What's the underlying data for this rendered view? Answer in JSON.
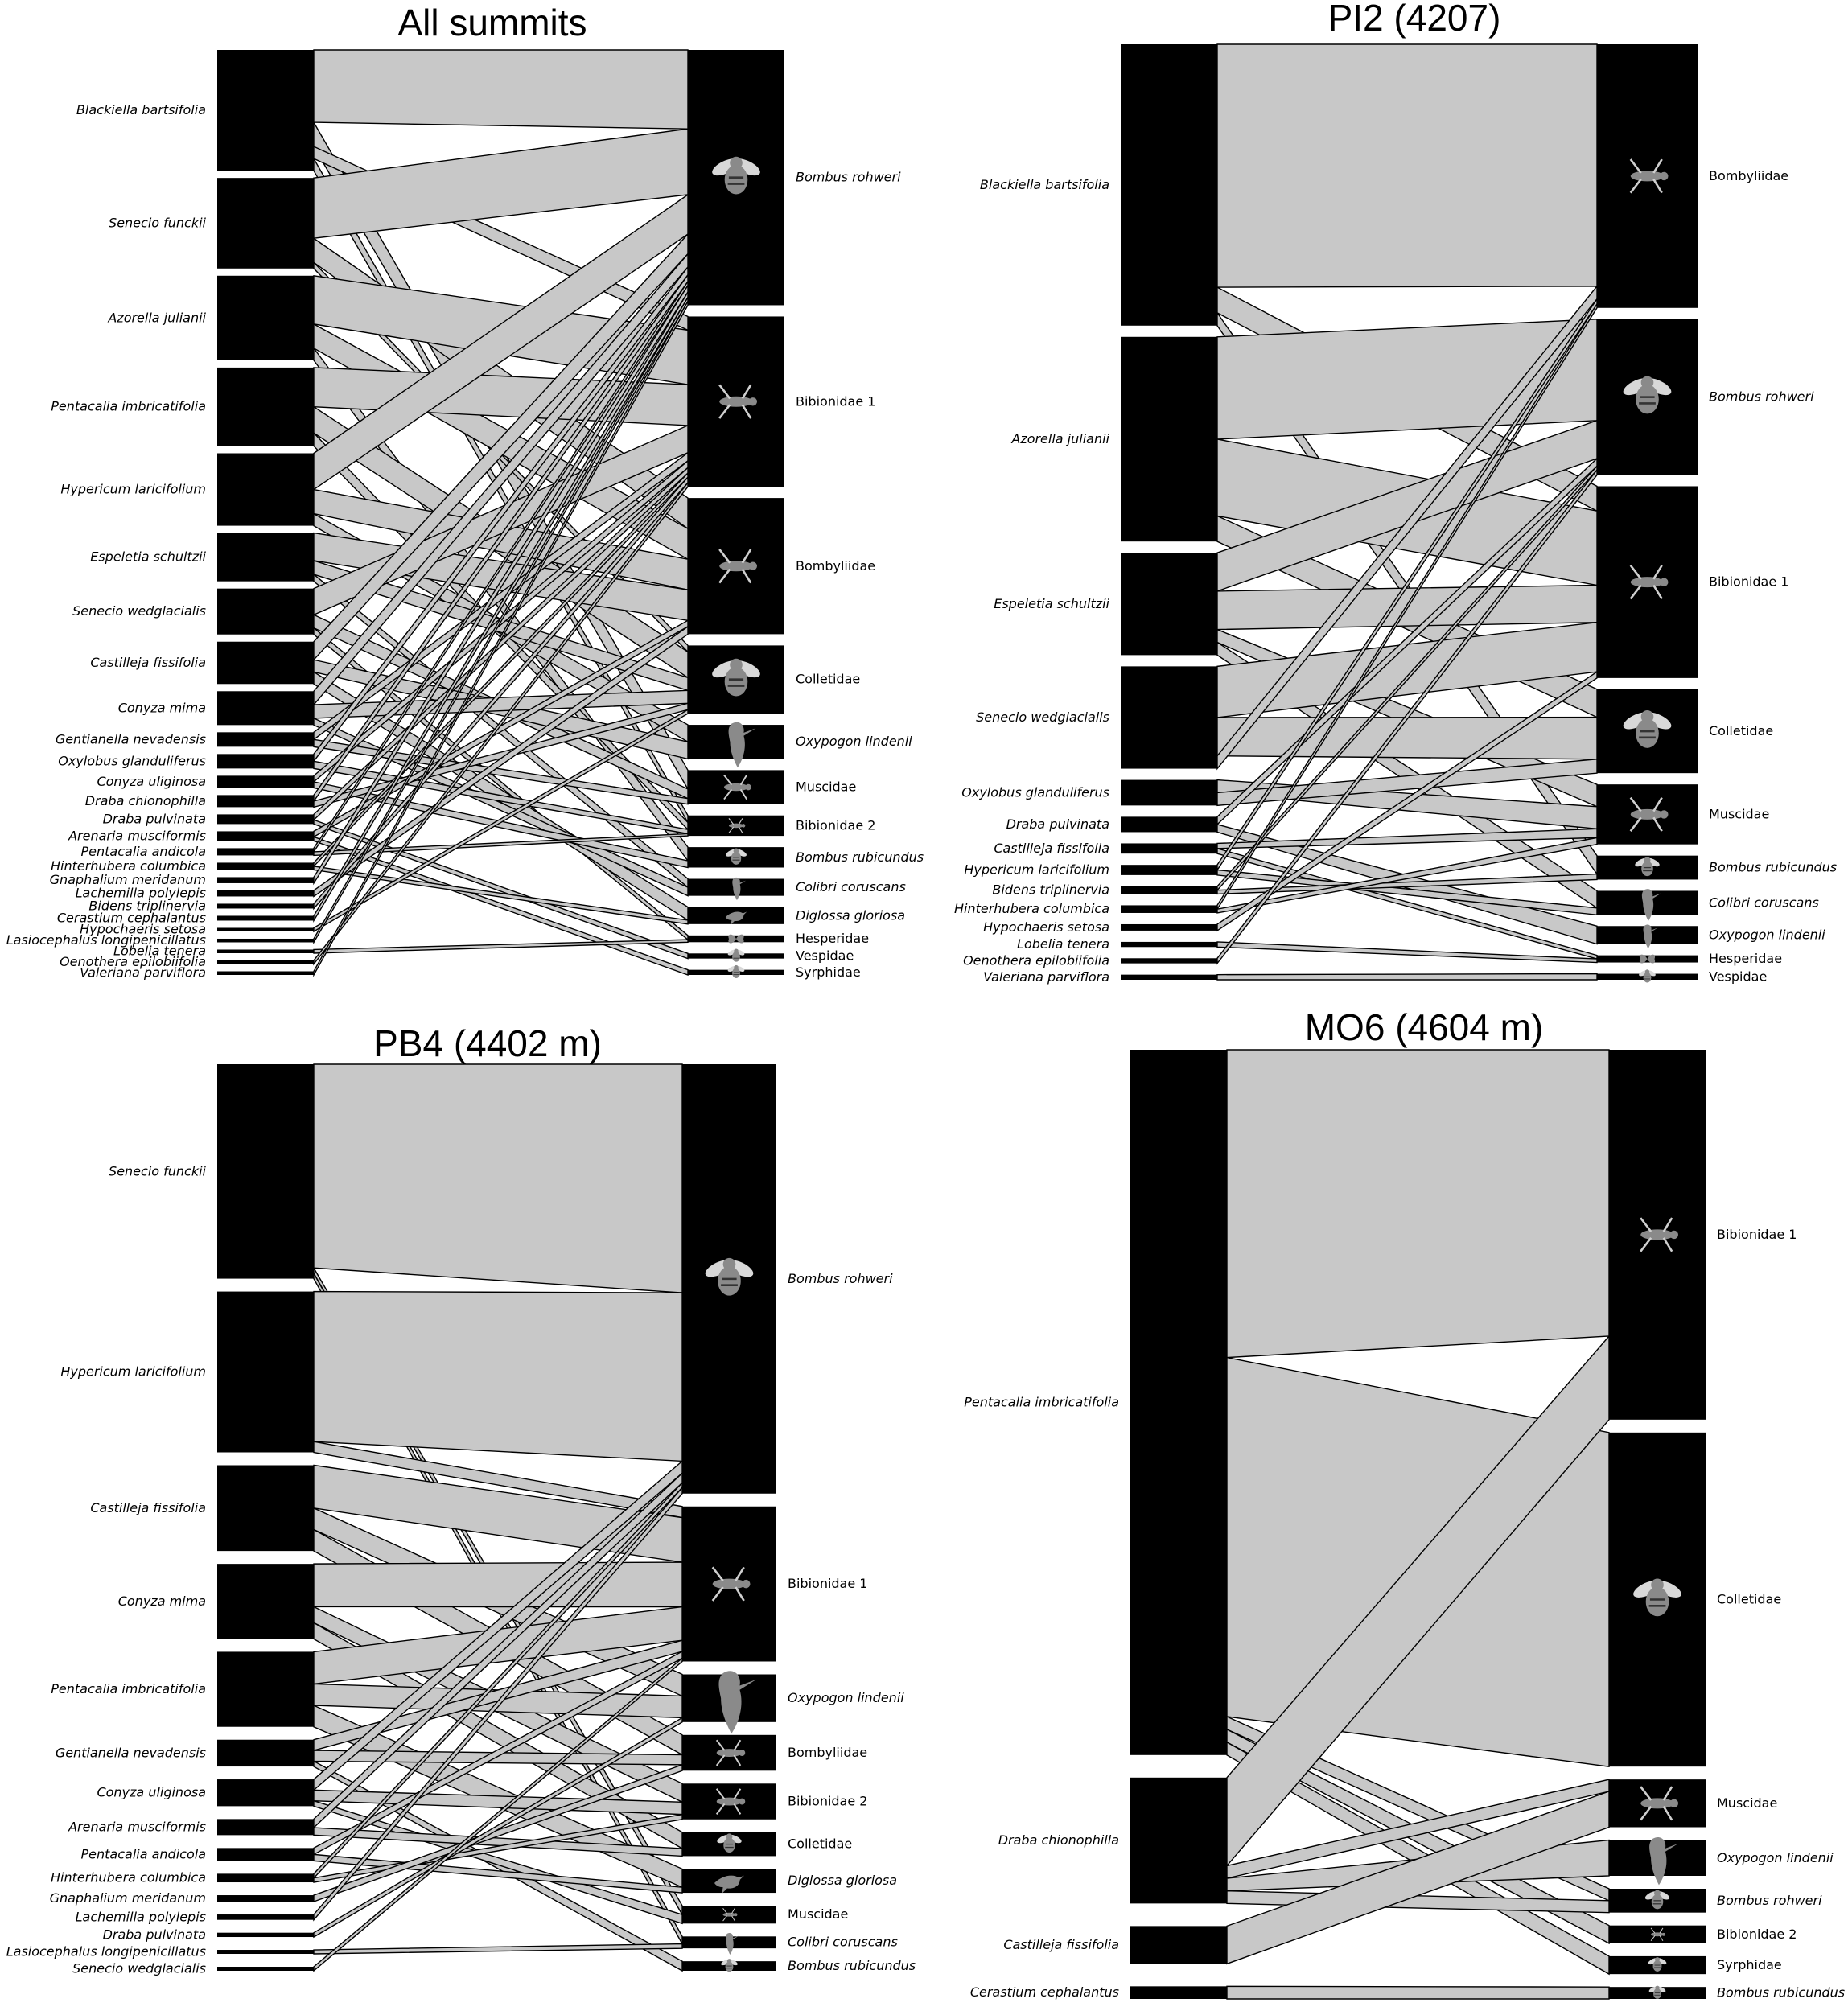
{
  "colors": {
    "block": "#000000",
    "link": "#c8c8c8",
    "link_edge": "#000000",
    "icon": "#8a8a8a",
    "background": "#ffffff"
  },
  "chart_data": [
    {
      "type": "bipartite",
      "title": "All summits",
      "plants": [
        {
          "name": "Blackiella bartsifolia",
          "weight": 10
        },
        {
          "name": "Senecio funckii",
          "weight": 7.5
        },
        {
          "name": "Azorella julianii",
          "weight": 7
        },
        {
          "name": "Pentacalia imbricatifolia",
          "weight": 6.5
        },
        {
          "name": "Hypericum laricifolium",
          "weight": 6
        },
        {
          "name": "Espeletia schultzii",
          "weight": 4
        },
        {
          "name": "Senecio wedglacialis",
          "weight": 3.8
        },
        {
          "name": "Castilleja fissifolia",
          "weight": 3.5
        },
        {
          "name": "Conyza mima",
          "weight": 2.8
        },
        {
          "name": "Gentianella nevadensis",
          "weight": 1.2
        },
        {
          "name": "Oxylobus glanduliferus",
          "weight": 1.2
        },
        {
          "name": "Conyza uliginosa",
          "weight": 1
        },
        {
          "name": "Draba chionophilla",
          "weight": 1
        },
        {
          "name": "Draba pulvinata",
          "weight": 0.8
        },
        {
          "name": "Arenaria musciformis",
          "weight": 0.8
        },
        {
          "name": "Pentacalia andicola",
          "weight": 0.6
        },
        {
          "name": "Hinterhubera columbica",
          "weight": 0.6
        },
        {
          "name": "Gnaphalium meridanum",
          "weight": 0.5
        },
        {
          "name": "Lachemilla polylepis",
          "weight": 0.5
        },
        {
          "name": "Bidens triplinervia",
          "weight": 0.4
        },
        {
          "name": "Cerastium cephalantus",
          "weight": 0.4
        },
        {
          "name": "Hypochaeris setosa",
          "weight": 0.3
        },
        {
          "name": "Lasiocephalus longipenicillatus",
          "weight": 0.3
        },
        {
          "name": "Lobelia tenera",
          "weight": 0.3
        },
        {
          "name": "Oenothera epilobiifolia",
          "weight": 0.3
        },
        {
          "name": "Valeriana parviflora",
          "weight": 0.3
        }
      ],
      "animals": [
        {
          "name": "Bombus rohweri",
          "italic": true,
          "icon": "bumblebee-icon",
          "weight": 15
        },
        {
          "name": "Bibionidae 1",
          "italic": false,
          "icon": "fly-icon",
          "weight": 10
        },
        {
          "name": "Bombyliidae",
          "italic": false,
          "icon": "bee-fly-icon",
          "weight": 8
        },
        {
          "name": "Colletidae",
          "italic": false,
          "icon": "bee-icon",
          "weight": 4
        },
        {
          "name": "Oxypogon lindenii",
          "italic": true,
          "icon": "hummingbird-icon",
          "weight": 2
        },
        {
          "name": "Muscidae",
          "italic": false,
          "icon": "housefly-icon",
          "weight": 2
        },
        {
          "name": "Bibionidae 2",
          "italic": false,
          "icon": "fly-icon",
          "weight": 1.2
        },
        {
          "name": "Bombus rubicundus",
          "italic": true,
          "icon": "bumblebee-icon",
          "weight": 1.2
        },
        {
          "name": "Colibri coruscans",
          "italic": true,
          "icon": "hummingbird-icon",
          "weight": 1
        },
        {
          "name": "Diglossa gloriosa",
          "italic": true,
          "icon": "songbird-icon",
          "weight": 1
        },
        {
          "name": "Hesperidae",
          "italic": false,
          "icon": "butterfly-icon",
          "weight": 0.4
        },
        {
          "name": "Vespidae",
          "italic": false,
          "icon": "wasp-icon",
          "weight": 0.3
        },
        {
          "name": "Syrphidae",
          "italic": false,
          "icon": "hoverfly-icon",
          "weight": 0.3
        }
      ],
      "links": [
        [
          0,
          0,
          6
        ],
        [
          0,
          5,
          2
        ],
        [
          0,
          1,
          1
        ],
        [
          0,
          6,
          1
        ],
        [
          1,
          0,
          5
        ],
        [
          1,
          2,
          2
        ],
        [
          1,
          3,
          0.5
        ],
        [
          2,
          1,
          4
        ],
        [
          2,
          2,
          2
        ],
        [
          2,
          7,
          1
        ],
        [
          3,
          1,
          3
        ],
        [
          3,
          3,
          2
        ],
        [
          3,
          6,
          1
        ],
        [
          4,
          0,
          3
        ],
        [
          4,
          2,
          2
        ],
        [
          4,
          4,
          1
        ],
        [
          5,
          2,
          2
        ],
        [
          5,
          3,
          1
        ],
        [
          5,
          8,
          0.5
        ],
        [
          6,
          1,
          2
        ],
        [
          6,
          5,
          1
        ],
        [
          6,
          10,
          0.5
        ],
        [
          7,
          0,
          1.5
        ],
        [
          7,
          4,
          1
        ],
        [
          7,
          9,
          1
        ],
        [
          8,
          0,
          1
        ],
        [
          8,
          3,
          1
        ],
        [
          8,
          8,
          0.5
        ],
        [
          9,
          1,
          0.6
        ],
        [
          9,
          5,
          0.6
        ],
        [
          10,
          0,
          0.6
        ],
        [
          10,
          6,
          0.6
        ],
        [
          11,
          1,
          0.5
        ],
        [
          11,
          7,
          0.5
        ],
        [
          12,
          0,
          0.5
        ],
        [
          12,
          3,
          0.5
        ],
        [
          13,
          1,
          0.4
        ],
        [
          13,
          11,
          0.3
        ],
        [
          14,
          2,
          0.4
        ],
        [
          14,
          12,
          0.3
        ],
        [
          15,
          0,
          0.3
        ],
        [
          15,
          6,
          0.3
        ],
        [
          16,
          1,
          0.3
        ],
        [
          16,
          9,
          0.3
        ],
        [
          17,
          0,
          0.5
        ],
        [
          18,
          2,
          0.5
        ],
        [
          19,
          1,
          0.4
        ],
        [
          20,
          0,
          0.4
        ],
        [
          21,
          3,
          0.3
        ],
        [
          22,
          0,
          0.3
        ],
        [
          23,
          10,
          0.3
        ],
        [
          24,
          1,
          0.3
        ],
        [
          25,
          0,
          0.3
        ]
      ]
    },
    {
      "type": "bipartite",
      "title": "PI2 (4207)",
      "plants": [
        {
          "name": "Blackiella bartsifolia",
          "weight": 22
        },
        {
          "name": "Azorella julianii",
          "weight": 16
        },
        {
          "name": "Espeletia schultzii",
          "weight": 8
        },
        {
          "name": "Senecio wedglacialis",
          "weight": 8
        },
        {
          "name": "Oxylobus glanduliferus",
          "weight": 2
        },
        {
          "name": "Draba pulvinata",
          "weight": 1.2
        },
        {
          "name": "Castilleja fissifolia",
          "weight": 0.8
        },
        {
          "name": "Hypericum laricifolium",
          "weight": 0.8
        },
        {
          "name": "Bidens triplinervia",
          "weight": 0.6
        },
        {
          "name": "Hinterhubera columbica",
          "weight": 0.6
        },
        {
          "name": "Hypochaeris setosa",
          "weight": 0.5
        },
        {
          "name": "Lobelia tenera",
          "weight": 0.4
        },
        {
          "name": "Oenothera epilobiifolia",
          "weight": 0.4
        },
        {
          "name": "Valeriana parviflora",
          "weight": 0.4
        }
      ],
      "animals": [
        {
          "name": "Bombyliidae",
          "italic": false,
          "icon": "bee-fly-icon",
          "weight": 22
        },
        {
          "name": "Bombus rohweri",
          "italic": true,
          "icon": "bumblebee-icon",
          "weight": 13
        },
        {
          "name": "Bibionidae 1",
          "italic": false,
          "icon": "fly-icon",
          "weight": 16
        },
        {
          "name": "Colletidae",
          "italic": false,
          "icon": "bee-icon",
          "weight": 7
        },
        {
          "name": "Muscidae",
          "italic": false,
          "icon": "housefly-icon",
          "weight": 5
        },
        {
          "name": "Bombus rubicundus",
          "italic": true,
          "icon": "bumblebee-icon",
          "weight": 2
        },
        {
          "name": "Colibri coruscans",
          "italic": true,
          "icon": "hummingbird-icon",
          "weight": 2
        },
        {
          "name": "Oxypogon lindenii",
          "italic": true,
          "icon": "hummingbird-icon",
          "weight": 1.5
        },
        {
          "name": "Hesperidae",
          "italic": false,
          "icon": "butterfly-icon",
          "weight": 0.6
        },
        {
          "name": "Vespidae",
          "italic": false,
          "icon": "wasp-icon",
          "weight": 0.5
        }
      ],
      "links": [
        [
          0,
          0,
          19
        ],
        [
          0,
          2,
          2
        ],
        [
          0,
          5,
          1
        ],
        [
          1,
          1,
          8
        ],
        [
          1,
          2,
          6
        ],
        [
          1,
          3,
          2
        ],
        [
          2,
          1,
          3
        ],
        [
          2,
          2,
          3
        ],
        [
          2,
          4,
          1
        ],
        [
          2,
          6,
          1
        ],
        [
          3,
          2,
          4
        ],
        [
          3,
          3,
          3
        ],
        [
          3,
          0,
          1
        ],
        [
          4,
          4,
          1
        ],
        [
          4,
          3,
          1
        ],
        [
          5,
          1,
          0.6
        ],
        [
          5,
          7,
          0.6
        ],
        [
          6,
          4,
          0.4
        ],
        [
          6,
          8,
          0.4
        ],
        [
          7,
          0,
          0.4
        ],
        [
          7,
          6,
          0.4
        ],
        [
          8,
          1,
          0.3
        ],
        [
          8,
          5,
          0.3
        ],
        [
          9,
          0,
          0.3
        ],
        [
          9,
          4,
          0.3
        ],
        [
          10,
          2,
          0.5
        ],
        [
          11,
          8,
          0.4
        ],
        [
          12,
          1,
          0.4
        ],
        [
          13,
          9,
          0.4
        ]
      ]
    },
    {
      "type": "bipartite",
      "title": "PB4 (4402 m)",
      "plants": [
        {
          "name": "Senecio funckii",
          "weight": 20
        },
        {
          "name": "Hypericum laricifolium",
          "weight": 15
        },
        {
          "name": "Castilleja fissifolia",
          "weight": 8
        },
        {
          "name": "Conyza mima",
          "weight": 7
        },
        {
          "name": "Pentacalia imbricatifolia",
          "weight": 7
        },
        {
          "name": "Gentianella nevadensis",
          "weight": 2.5
        },
        {
          "name": "Conyza uliginosa",
          "weight": 2.5
        },
        {
          "name": "Arenaria musciformis",
          "weight": 1.5
        },
        {
          "name": "Pentacalia andicola",
          "weight": 1.2
        },
        {
          "name": "Hinterhubera columbica",
          "weight": 0.8
        },
        {
          "name": "Gnaphalium meridanum",
          "weight": 0.6
        },
        {
          "name": "Lachemilla polylepis",
          "weight": 0.5
        },
        {
          "name": "Draba pulvinata",
          "weight": 0.4
        },
        {
          "name": "Lasiocephalus longipenicillatus",
          "weight": 0.3
        },
        {
          "name": "Senecio wedglacialis",
          "weight": 0.3
        }
      ],
      "animals": [
        {
          "name": "Bombus rohweri",
          "italic": true,
          "icon": "bumblebee-icon",
          "weight": 36
        },
        {
          "name": "Bibionidae 1",
          "italic": false,
          "icon": "fly-icon",
          "weight": 13
        },
        {
          "name": "Oxypogon lindenii",
          "italic": true,
          "icon": "hummingbird-icon",
          "weight": 4
        },
        {
          "name": "Bombyliidae",
          "italic": false,
          "icon": "bee-fly-icon",
          "weight": 3
        },
        {
          "name": "Bibionidae 2",
          "italic": false,
          "icon": "fly-icon",
          "weight": 3
        },
        {
          "name": "Colletidae",
          "italic": false,
          "icon": "bee-icon",
          "weight": 2
        },
        {
          "name": "Diglossa gloriosa",
          "italic": true,
          "icon": "songbird-icon",
          "weight": 2
        },
        {
          "name": "Muscidae",
          "italic": false,
          "icon": "housefly-icon",
          "weight": 1.5
        },
        {
          "name": "Colibri coruscans",
          "italic": true,
          "icon": "hummingbird-icon",
          "weight": 1
        },
        {
          "name": "Bombus rubicundus",
          "italic": true,
          "icon": "bumblebee-icon",
          "weight": 0.8
        }
      ],
      "links": [
        [
          0,
          0,
          19
        ],
        [
          0,
          7,
          0.5
        ],
        [
          0,
          8,
          0.5
        ],
        [
          1,
          0,
          14
        ],
        [
          1,
          1,
          1
        ],
        [
          2,
          1,
          4
        ],
        [
          2,
          2,
          2
        ],
        [
          2,
          3,
          2
        ],
        [
          3,
          1,
          4
        ],
        [
          3,
          4,
          1.5
        ],
        [
          3,
          5,
          1.5
        ],
        [
          4,
          1,
          3
        ],
        [
          4,
          2,
          2
        ],
        [
          4,
          6,
          2
        ],
        [
          5,
          1,
          1
        ],
        [
          5,
          3,
          1
        ],
        [
          5,
          9,
          0.5
        ],
        [
          6,
          0,
          1
        ],
        [
          6,
          4,
          1
        ],
        [
          6,
          7,
          0.5
        ],
        [
          7,
          0,
          0.8
        ],
        [
          7,
          5,
          0.7
        ],
        [
          8,
          1,
          0.6
        ],
        [
          8,
          6,
          0.6
        ],
        [
          9,
          0,
          0.4
        ],
        [
          9,
          4,
          0.4
        ],
        [
          10,
          3,
          0.6
        ],
        [
          11,
          0,
          0.5
        ],
        [
          12,
          2,
          0.4
        ],
        [
          13,
          8,
          0.3
        ],
        [
          14,
          1,
          0.3
        ]
      ]
    },
    {
      "type": "bipartite",
      "title": "MO6 (4604 m)",
      "plants": [
        {
          "name": "Pentacalia imbricatifolia",
          "weight": 56
        },
        {
          "name": "Draba chionophilla",
          "weight": 10
        },
        {
          "name": "Castilleja fissifolia",
          "weight": 3
        },
        {
          "name": "Cerastium cephalantus",
          "weight": 1
        }
      ],
      "animals": [
        {
          "name": "Bibionidae 1",
          "italic": false,
          "icon": "fly-icon",
          "weight": 31
        },
        {
          "name": "Colletidae",
          "italic": false,
          "icon": "bee-icon",
          "weight": 28
        },
        {
          "name": "Muscidae",
          "italic": false,
          "icon": "housefly-icon",
          "weight": 4
        },
        {
          "name": "Oxypogon lindenii",
          "italic": true,
          "icon": "hummingbird-icon",
          "weight": 3
        },
        {
          "name": "Bombus rohweri",
          "italic": true,
          "icon": "bumblebee-icon",
          "weight": 2
        },
        {
          "name": "Bibionidae 2",
          "italic": false,
          "icon": "fly-icon",
          "weight": 1.5
        },
        {
          "name": "Syrphidae",
          "italic": false,
          "icon": "hoverfly-icon",
          "weight": 1.5
        },
        {
          "name": "Bombus rubicundus",
          "italic": true,
          "icon": "bumblebee-icon",
          "weight": 1
        }
      ],
      "links": [
        [
          0,
          0,
          24
        ],
        [
          0,
          1,
          28
        ],
        [
          0,
          4,
          1
        ],
        [
          0,
          5,
          1
        ],
        [
          0,
          6,
          1
        ],
        [
          1,
          0,
          7
        ],
        [
          1,
          2,
          1
        ],
        [
          1,
          3,
          1
        ],
        [
          1,
          4,
          1
        ],
        [
          2,
          2,
          3
        ],
        [
          3,
          7,
          1
        ]
      ]
    }
  ]
}
